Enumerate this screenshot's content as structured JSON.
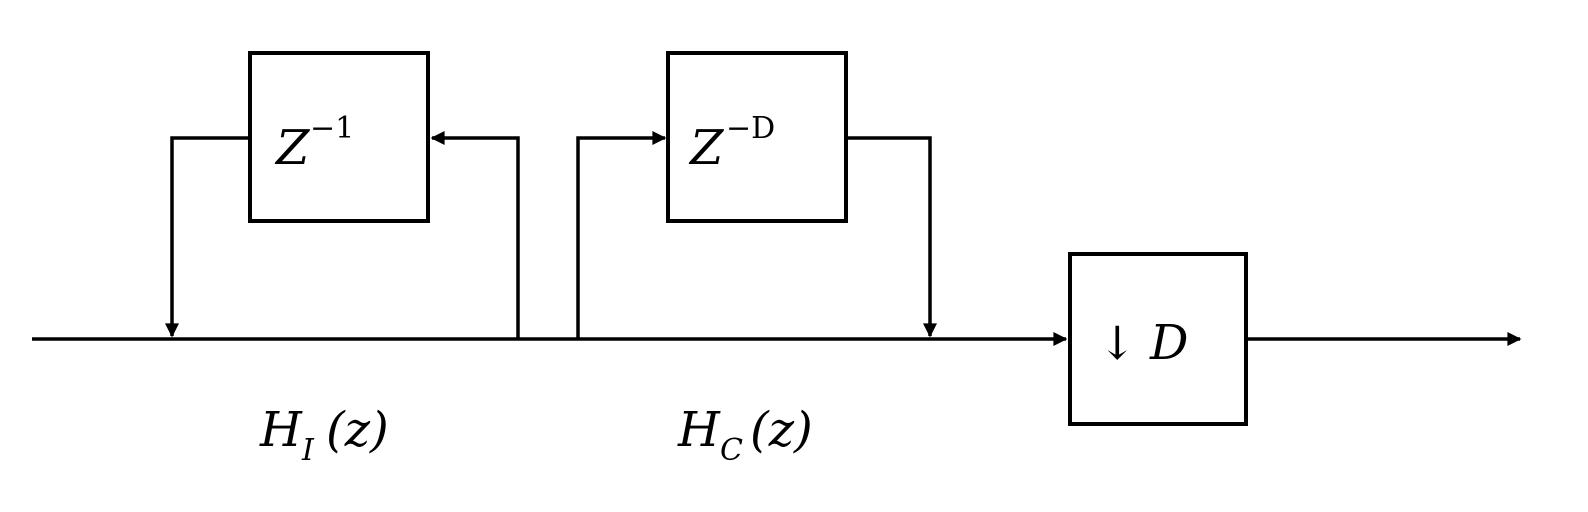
{
  "colors": {
    "stroke": "#000000",
    "background": "#ffffff"
  },
  "blocks": {
    "delay_one": {
      "base": "Z",
      "exponent": "−1"
    },
    "delay_d": {
      "base": "Z",
      "exponent": "−D"
    },
    "downsampler": {
      "arrow": "↓",
      "factor": "D"
    }
  },
  "labels": {
    "integrator": {
      "base": "H",
      "subscript": "I",
      "argument": "(z)"
    },
    "comb": {
      "base": "H",
      "subscript": "C",
      "argument": "(z)"
    }
  }
}
